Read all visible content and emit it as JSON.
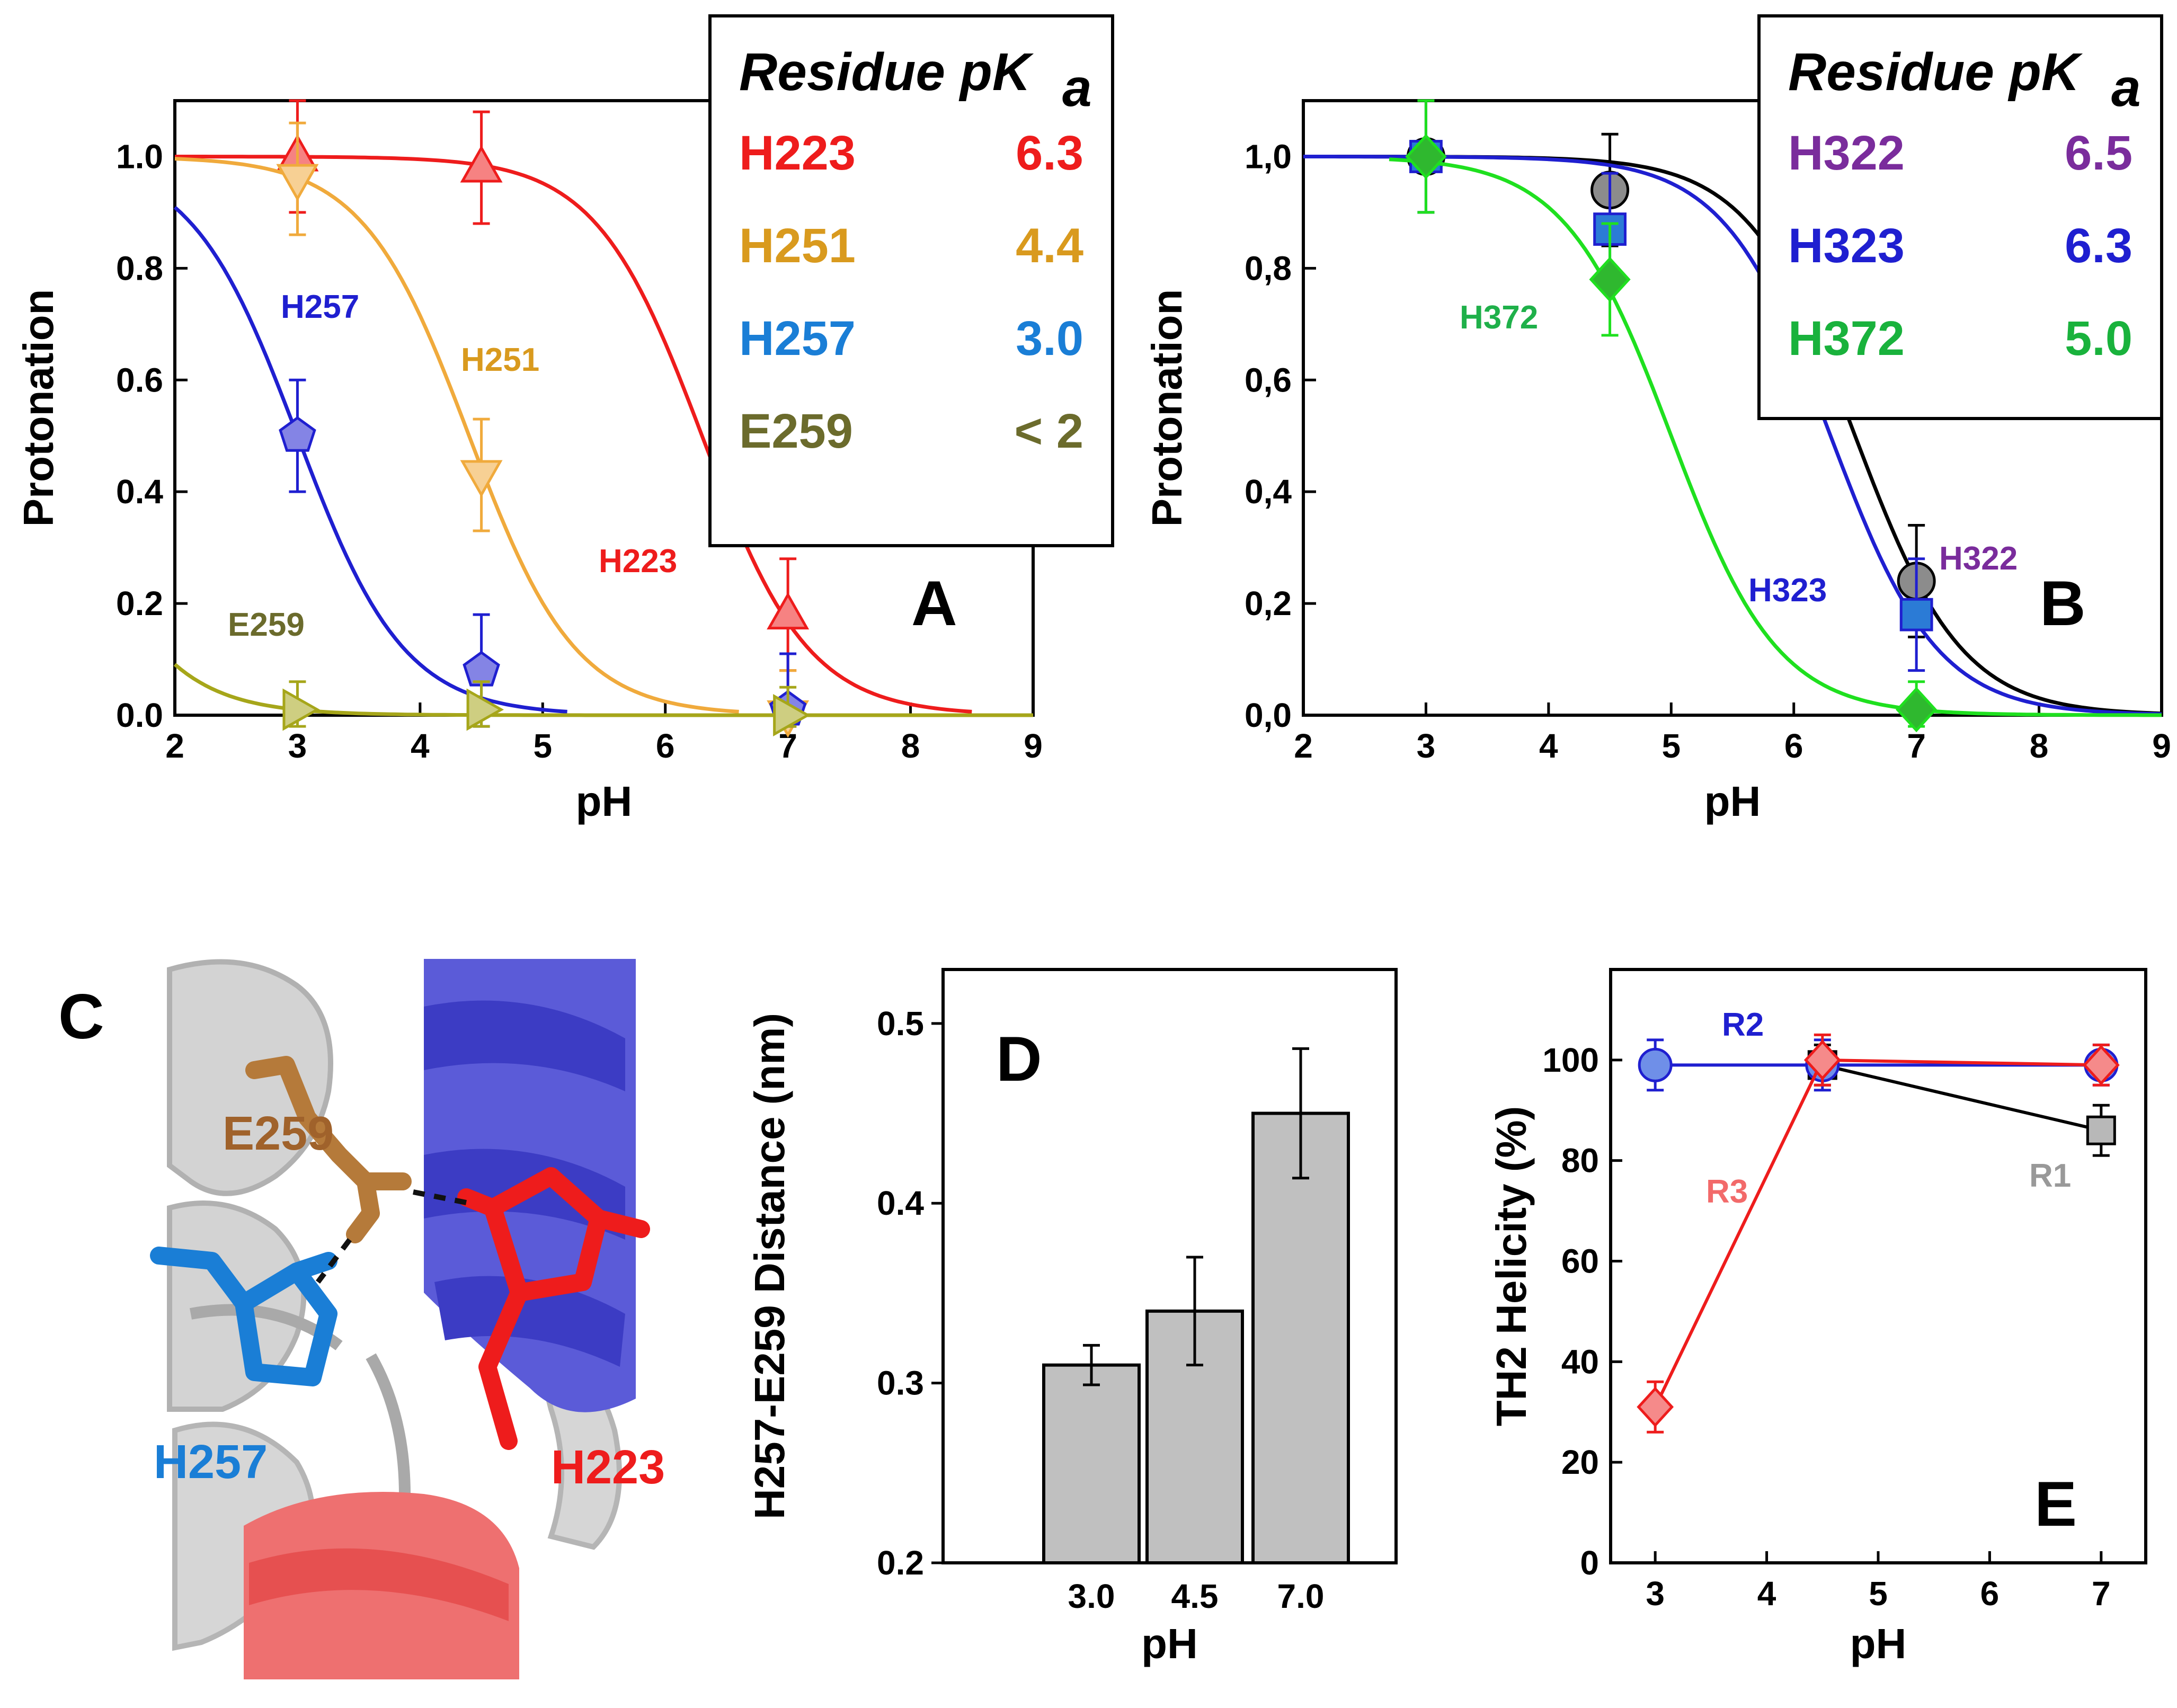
{
  "figure": {
    "colors": {
      "H223": "#ee1c1c",
      "H251": "#f0aa3c",
      "H257": "#1f1fd0",
      "E259": "#a6a61a",
      "H322": "#7a2c9c",
      "H323": "#1f1fd0",
      "H372": "#1fe01f",
      "legendH251": "#d99a1e",
      "legendH257": "#1a7ed6",
      "legendE259": "#6b6b2c",
      "legendH372": "#19b23c",
      "labelH372": "#1fb04a",
      "labelE259": "#6b6b2c"
    }
  },
  "chart_data": [
    {
      "panel": "A",
      "type": "line",
      "xlabel": "pH",
      "ylabel": "Protonation",
      "xlim": [
        2,
        9
      ],
      "ylim": [
        0,
        1.1
      ],
      "xticks": [
        "2",
        "3",
        "4",
        "5",
        "6",
        "7",
        "8",
        "9"
      ],
      "yticks": [
        "0.0",
        "0.2",
        "0.4",
        "0.6",
        "0.8",
        "1.0"
      ],
      "legend_title": "Residue pK",
      "legend_title_sub": "a",
      "legend_entries": [
        {
          "name": "H223",
          "value": "6.3",
          "color_key": "H223"
        },
        {
          "name": "H251",
          "value": "4.4",
          "color_key": "legendH251"
        },
        {
          "name": "H257",
          "value": "3.0",
          "color_key": "legendH257"
        },
        {
          "name": "E259",
          "value": "< 2",
          "color_key": "legendE259"
        }
      ],
      "series_labels": [
        "H257",
        "H251",
        "H223",
        "E259"
      ],
      "series": [
        {
          "name": "H223",
          "pka": 6.3,
          "x_range": [
            2,
            8.5
          ],
          "marker": "triangle-up",
          "points": [
            {
              "x": 3,
              "y": 1.0,
              "err": 0.1
            },
            {
              "x": 4.5,
              "y": 0.98,
              "err": 0.1
            },
            {
              "x": 7,
              "y": 0.18,
              "err": 0.1
            }
          ]
        },
        {
          "name": "H251",
          "pka": 4.4,
          "x_range": [
            2,
            6.6
          ],
          "marker": "triangle-down",
          "points": [
            {
              "x": 3,
              "y": 0.96,
              "err": 0.1
            },
            {
              "x": 4.5,
              "y": 0.43,
              "err": 0.1
            },
            {
              "x": 7,
              "y": 0.0,
              "err": 0.08
            }
          ]
        },
        {
          "name": "H257",
          "pka": 3.0,
          "x_range": [
            2,
            5.2
          ],
          "marker": "pentagon",
          "points": [
            {
              "x": 3,
              "y": 0.5,
              "err": 0.1
            },
            {
              "x": 4.5,
              "y": 0.08,
              "err": 0.1
            },
            {
              "x": 7,
              "y": 0.01,
              "err": 0.1
            }
          ]
        },
        {
          "name": "E259",
          "pka": 1.0,
          "x_range": [
            2,
            9
          ],
          "marker": "triangle-right",
          "points": [
            {
              "x": 3,
              "y": 0.01,
              "err": 0.05
            },
            {
              "x": 4.5,
              "y": 0.01,
              "err": 0.05
            },
            {
              "x": 7,
              "y": 0.0,
              "err": 0.05
            }
          ]
        }
      ],
      "panel_label": "A"
    },
    {
      "panel": "B",
      "type": "line",
      "xlabel": "pH",
      "ylabel": "Protonation",
      "xlim": [
        2,
        9
      ],
      "ylim": [
        0,
        1.1
      ],
      "xticks": [
        "2",
        "3",
        "4",
        "5",
        "6",
        "7",
        "8",
        "9"
      ],
      "yticks": [
        "0,0",
        "0,2",
        "0,4",
        "0,6",
        "0,8",
        "1,0"
      ],
      "legend_title": "Residue pK",
      "legend_title_sub": "a",
      "legend_entries": [
        {
          "name": "H322",
          "value": "6.5",
          "color_key": "H322"
        },
        {
          "name": "H323",
          "value": "6.3",
          "color_key": "H323"
        },
        {
          "name": "H372",
          "value": "5.0",
          "color_key": "legendH372"
        }
      ],
      "series_labels": [
        "H372",
        "H323",
        "H322"
      ],
      "series": [
        {
          "name": "H322",
          "pka": 6.5,
          "x_range": [
            2,
            9
          ],
          "marker": "circle",
          "line_color": "#000000",
          "fill": "#8c8c8c",
          "points": [
            {
              "x": 3,
              "y": 1.0,
              "err": 0.1
            },
            {
              "x": 4.5,
              "y": 0.94,
              "err": 0.1
            },
            {
              "x": 7,
              "y": 0.24,
              "err": 0.1
            }
          ]
        },
        {
          "name": "H323",
          "pka": 6.3,
          "x_range": [
            2,
            9
          ],
          "marker": "square",
          "line_color": "#1f1fd0",
          "fill": "#2b7bd6",
          "points": [
            {
              "x": 3,
              "y": 1.0,
              "err": 0.1
            },
            {
              "x": 4.5,
              "y": 0.87,
              "err": 0.1
            },
            {
              "x": 7,
              "y": 0.18,
              "err": 0.1
            }
          ]
        },
        {
          "name": "H372",
          "pka": 5.0,
          "x_range": [
            2.7,
            9
          ],
          "marker": "diamond",
          "line_color": "#1fe01f",
          "fill": "#2fb82f",
          "points": [
            {
              "x": 3,
              "y": 1.0,
              "err": 0.1
            },
            {
              "x": 4.5,
              "y": 0.78,
              "err": 0.1
            },
            {
              "x": 7,
              "y": 0.01,
              "err": 0.05
            }
          ]
        }
      ],
      "panel_label": "B"
    },
    {
      "panel": "D",
      "type": "bar",
      "xlabel": "pH",
      "ylabel": "H257-E259 Distance (nm)",
      "categories": [
        "3.0",
        "4.5",
        "7.0"
      ],
      "values": [
        0.31,
        0.34,
        0.45
      ],
      "errors": [
        0.011,
        0.03,
        0.036
      ],
      "ylim": [
        0.2,
        0.53
      ],
      "yticks": [
        "0.2",
        "0.3",
        "0.4",
        "0.5"
      ],
      "panel_label": "D"
    },
    {
      "panel": "E",
      "type": "line",
      "xlabel": "pH",
      "ylabel": "TH2 Helicity (%)",
      "xlim": [
        2.6,
        7.4
      ],
      "ylim": [
        0,
        118
      ],
      "xticks": [
        "3",
        "4",
        "5",
        "6",
        "7"
      ],
      "yticks": [
        "0",
        "20",
        "40",
        "60",
        "80",
        "100"
      ],
      "series": [
        {
          "name": "R1",
          "color": "#000000",
          "marker": "square",
          "fill": "#b8b8b8",
          "label_color": "#999999",
          "points": [
            {
              "x": 4.5,
              "y": 99,
              "err": 4
            },
            {
              "x": 7,
              "y": 86,
              "err": 5
            }
          ]
        },
        {
          "name": "R2",
          "color": "#1f1fd0",
          "marker": "circle",
          "fill": "#6f8fe8",
          "label_color": "#1f1fd0",
          "points": [
            {
              "x": 3,
              "y": 99,
              "err": 5
            },
            {
              "x": 4.5,
              "y": 99,
              "err": 5
            },
            {
              "x": 7,
              "y": 99,
              "err": 4
            }
          ]
        },
        {
          "name": "R3",
          "color": "#ee1c1c",
          "marker": "diamond",
          "fill": "#f58a8a",
          "label_color": "#f26a6a",
          "points": [
            {
              "x": 3,
              "y": 31,
              "err": 5
            },
            {
              "x": 4.5,
              "y": 100,
              "err": 5
            },
            {
              "x": 7,
              "y": 99,
              "err": 4
            }
          ]
        }
      ],
      "panel_label": "E"
    }
  ],
  "panelC": {
    "panel_label": "C",
    "labels": [
      {
        "text": "E259",
        "color": "#a0622b"
      },
      {
        "text": "H257",
        "color": "#1a7ed6"
      },
      {
        "text": "H223",
        "color": "#ee1c1c"
      }
    ]
  }
}
